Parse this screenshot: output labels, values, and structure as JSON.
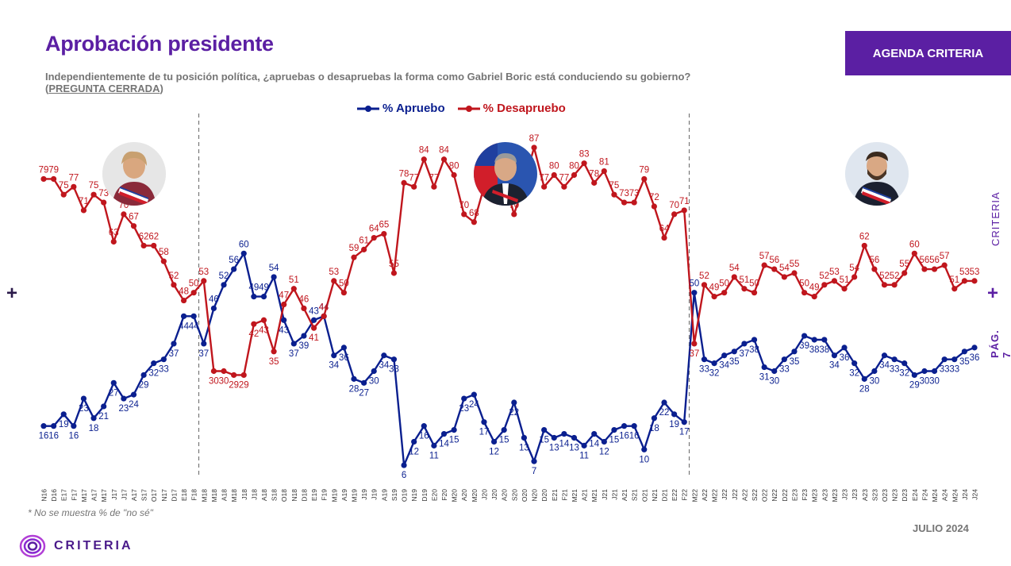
{
  "title": "Aprobación presidente",
  "question": "Independientemente de tu posición política, ¿apruebas o desapruebas la forma como Gabriel Boric está conduciendo su gobierno?",
  "question_tag": "PREGUNTA CERRADA",
  "agenda_label": "AGENDA CRITERIA",
  "footnote": "* No se muestra % de \"no sé\"",
  "date_label": "JULIO 2024",
  "brand": "CRITERIA",
  "page_label": "PÁG. 7",
  "plus_symbol": "+",
  "colors": {
    "accent": "#5b1fa3",
    "approve": "#0a1f8f",
    "disapprove": "#c0161d"
  },
  "icons": {
    "portraits": [
      "president-portrait-1",
      "president-portrait-2",
      "president-portrait-3"
    ],
    "logo": "criteria-logo-icon"
  },
  "chart_data": {
    "type": "line",
    "x": [
      "N16",
      "D16",
      "E17",
      "F17",
      "M17",
      "A17",
      "M17",
      "J17",
      "J17",
      "A17",
      "S17",
      "O17",
      "N17",
      "D17",
      "E18",
      "F18",
      "M18",
      "M18",
      "A18",
      "M18",
      "J18",
      "J18",
      "A18",
      "S18",
      "O18",
      "N18",
      "D18",
      "E19",
      "F19",
      "M19",
      "A19",
      "M19",
      "J19",
      "J19",
      "A19",
      "S19",
      "O19",
      "N19",
      "D19",
      "E20",
      "F20",
      "M20",
      "A20",
      "M20",
      "J20",
      "J20",
      "A20",
      "S20",
      "O20",
      "N20",
      "D20",
      "E21",
      "F21",
      "M21",
      "A21",
      "M21",
      "J21",
      "J21",
      "A21",
      "S21",
      "O21",
      "N21",
      "D21",
      "E22",
      "F22",
      "M22",
      "A22",
      "M22",
      "J22",
      "J22",
      "A22",
      "S22",
      "O22",
      "N22",
      "D22",
      "E23",
      "F23",
      "M23",
      "A23",
      "M23",
      "J23",
      "J23",
      "A23",
      "S23",
      "O23",
      "N23",
      "D23",
      "E24",
      "F24",
      "M24",
      "A24",
      "M24",
      "J24",
      "J24"
    ],
    "series": [
      {
        "name": "% Apruebo",
        "color": "#0a1f8f",
        "values": [
          16,
          16,
          19,
          16,
          23,
          18,
          21,
          27,
          23,
          24,
          29,
          32,
          33,
          37,
          44,
          44,
          37,
          46,
          52,
          56,
          60,
          49,
          49,
          54,
          43,
          37,
          39,
          43,
          44,
          34,
          36,
          28,
          27,
          30,
          34,
          33,
          6,
          12,
          16,
          11,
          14,
          15,
          23,
          24,
          17,
          12,
          15,
          22,
          13,
          7,
          15,
          13,
          14,
          13,
          11,
          14,
          12,
          15,
          16,
          16,
          10,
          18,
          22,
          19,
          17,
          50,
          33,
          32,
          34,
          35,
          37,
          38,
          31,
          30,
          33,
          35,
          39,
          38,
          38,
          34,
          36,
          32,
          28,
          30,
          34,
          33,
          32,
          29,
          30,
          30,
          33,
          33,
          35,
          36
        ]
      },
      {
        "name": "% Desapruebo",
        "color": "#c0161d",
        "values": [
          79,
          79,
          75,
          77,
          71,
          75,
          73,
          63,
          70,
          67,
          62,
          62,
          58,
          52,
          48,
          50,
          53,
          30,
          30,
          29,
          29,
          42,
          43,
          35,
          47,
          51,
          46,
          41,
          44,
          53,
          50,
          59,
          61,
          64,
          65,
          55,
          78,
          77,
          84,
          77,
          84,
          80,
          70,
          68,
          77,
          82,
          79,
          70,
          78,
          87,
          77,
          80,
          77,
          80,
          83,
          78,
          81,
          75,
          73,
          73,
          79,
          72,
          64,
          70,
          71,
          37,
          52,
          49,
          50,
          54,
          51,
          50,
          57,
          56,
          54,
          55,
          50,
          49,
          52,
          53,
          51,
          54,
          62,
          56,
          52,
          52,
          55,
          60,
          56,
          56,
          57,
          51,
          53,
          53
        ]
      }
    ],
    "legend": "top-center",
    "dividers_after": [
      "F18",
      "F22"
    ],
    "grid": false
  }
}
